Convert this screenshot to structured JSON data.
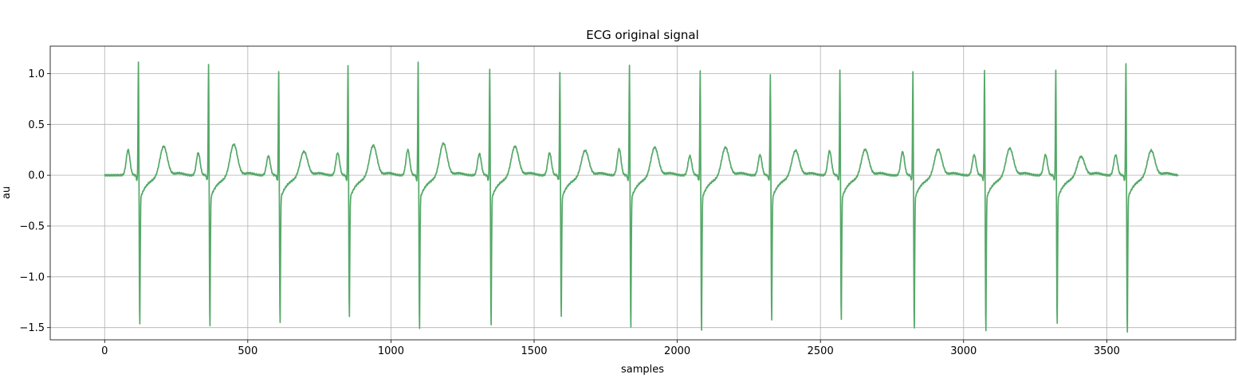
{
  "chart_data": {
    "type": "line",
    "title": "ECG original signal",
    "xlabel": "samples",
    "ylabel": "au",
    "xlim": [
      -190,
      3950
    ],
    "ylim": [
      -1.62,
      1.27
    ],
    "xticks": [
      0,
      500,
      1000,
      1500,
      2000,
      2500,
      3000,
      3500
    ],
    "yticks": [
      -1.5,
      -1.0,
      -0.5,
      0.0,
      0.5,
      1.0
    ],
    "ytick_labels": [
      "−1.5",
      "−1.0",
      "−0.5",
      "0.0",
      "0.5",
      "1.0"
    ],
    "grid": true,
    "series": [
      {
        "color": "#55a868",
        "n_samples": 3750,
        "beats": [
          {
            "r_sample": 118,
            "r": 1.14,
            "s": -1.39,
            "p": 0.25,
            "t": 0.3
          },
          {
            "r_sample": 363,
            "r": 1.11,
            "s": -1.41,
            "p": 0.22,
            "t": 0.32
          },
          {
            "r_sample": 608,
            "r": 1.04,
            "s": -1.38,
            "p": 0.19,
            "t": 0.25
          },
          {
            "r_sample": 850,
            "r": 1.09,
            "s": -1.31,
            "p": 0.22,
            "t": 0.31
          },
          {
            "r_sample": 1095,
            "r": 1.13,
            "s": -1.43,
            "p": 0.25,
            "t": 0.33
          },
          {
            "r_sample": 1345,
            "r": 1.07,
            "s": -1.4,
            "p": 0.21,
            "t": 0.3
          },
          {
            "r_sample": 1590,
            "r": 1.03,
            "s": -1.31,
            "p": 0.22,
            "t": 0.26
          },
          {
            "r_sample": 1833,
            "r": 1.09,
            "s": -1.41,
            "p": 0.26,
            "t": 0.29
          },
          {
            "r_sample": 2080,
            "r": 1.05,
            "s": -1.45,
            "p": 0.19,
            "t": 0.29
          },
          {
            "r_sample": 2325,
            "r": 1.0,
            "s": -1.34,
            "p": 0.2,
            "t": 0.26
          },
          {
            "r_sample": 2568,
            "r": 1.05,
            "s": -1.34,
            "p": 0.24,
            "t": 0.27
          },
          {
            "r_sample": 2823,
            "r": 1.04,
            "s": -1.43,
            "p": 0.23,
            "t": 0.27
          },
          {
            "r_sample": 3073,
            "r": 1.04,
            "s": -1.45,
            "p": 0.2,
            "t": 0.28
          },
          {
            "r_sample": 3322,
            "r": 1.05,
            "s": -1.38,
            "p": 0.2,
            "t": 0.2
          },
          {
            "r_sample": 3567,
            "r": 1.12,
            "s": -1.48,
            "p": 0.2,
            "t": 0.26
          }
        ]
      }
    ]
  }
}
